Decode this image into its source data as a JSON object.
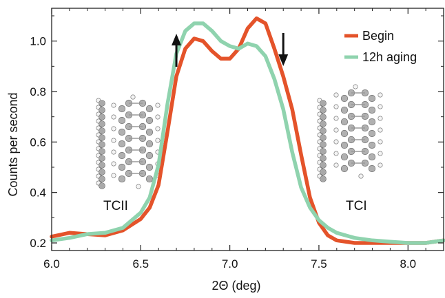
{
  "chart_data": {
    "type": "line",
    "xlabel": "2Θ (deg)",
    "ylabel": "Counts per second",
    "xlim": [
      6.0,
      8.2
    ],
    "ylim": [
      0.17,
      1.13
    ],
    "xticks": [
      6.0,
      6.5,
      7.0,
      7.5,
      8.0
    ],
    "xtick_labels": [
      "6.0",
      "6.5",
      "7.0",
      "7.5",
      "8.0"
    ],
    "yticks": [
      0.2,
      0.4,
      0.6,
      0.8,
      1.0
    ],
    "ytick_labels": [
      "0.2",
      "0.4",
      "0.6",
      "0.8",
      "1.0"
    ],
    "grid": false,
    "legend_position": "top-right",
    "series": [
      {
        "name": "Begin",
        "color": "#e4532a",
        "x": [
          6.0,
          6.1,
          6.2,
          6.3,
          6.4,
          6.5,
          6.55,
          6.6,
          6.65,
          6.7,
          6.75,
          6.8,
          6.85,
          6.9,
          6.95,
          7.0,
          7.05,
          7.1,
          7.15,
          7.2,
          7.25,
          7.3,
          7.35,
          7.4,
          7.45,
          7.5,
          7.55,
          7.6,
          7.7,
          7.8,
          7.9,
          8.0,
          8.1,
          8.2
        ],
        "y": [
          0.225,
          0.24,
          0.235,
          0.23,
          0.25,
          0.295,
          0.34,
          0.43,
          0.64,
          0.86,
          0.97,
          1.01,
          1.0,
          0.96,
          0.93,
          0.93,
          0.97,
          1.05,
          1.09,
          1.07,
          0.97,
          0.86,
          0.73,
          0.55,
          0.38,
          0.28,
          0.23,
          0.21,
          0.2,
          0.2,
          0.2,
          0.2,
          0.2,
          0.21
        ]
      },
      {
        "name": "12h aging",
        "color": "#8fd3ae",
        "x": [
          6.0,
          6.1,
          6.2,
          6.3,
          6.4,
          6.5,
          6.55,
          6.6,
          6.65,
          6.7,
          6.75,
          6.8,
          6.85,
          6.9,
          6.95,
          7.0,
          7.05,
          7.1,
          7.15,
          7.2,
          7.25,
          7.3,
          7.35,
          7.4,
          7.45,
          7.5,
          7.55,
          7.6,
          7.7,
          7.8,
          7.9,
          8.0,
          8.1,
          8.2
        ],
        "y": [
          0.21,
          0.22,
          0.235,
          0.24,
          0.26,
          0.32,
          0.38,
          0.51,
          0.75,
          0.95,
          1.04,
          1.07,
          1.07,
          1.04,
          1.0,
          0.98,
          0.97,
          0.99,
          0.98,
          0.94,
          0.85,
          0.73,
          0.56,
          0.42,
          0.34,
          0.29,
          0.26,
          0.24,
          0.22,
          0.21,
          0.205,
          0.2,
          0.2,
          0.21
        ]
      }
    ],
    "annotations": [
      {
        "text": "TCII",
        "x": 6.32,
        "y": 0.33
      },
      {
        "text": "TCI",
        "x": 7.8,
        "y": 0.33
      }
    ],
    "arrows": [
      {
        "direction": "up",
        "x": 6.7
      },
      {
        "direction": "down",
        "x": 7.3
      }
    ]
  }
}
